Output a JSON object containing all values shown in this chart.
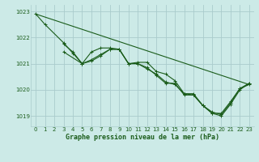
{
  "background_color": "#cceae7",
  "grid_color": "#aacccc",
  "line_color": "#1a5c1a",
  "title": "Graphe pression niveau de la mer (hPa)",
  "xlim": [
    -0.5,
    23.5
  ],
  "ylim": [
    1018.6,
    1023.25
  ],
  "yticks": [
    1019,
    1020,
    1021,
    1022,
    1023
  ],
  "xticks": [
    0,
    1,
    2,
    3,
    4,
    5,
    6,
    7,
    8,
    9,
    10,
    11,
    12,
    13,
    14,
    15,
    16,
    17,
    18,
    19,
    20,
    21,
    22,
    23
  ],
  "series": [
    {
      "x": [
        0,
        1,
        3,
        4,
        5,
        6,
        7,
        8,
        9,
        10,
        11,
        12,
        13,
        14,
        15,
        16,
        17,
        18,
        19,
        20,
        21,
        22,
        23
      ],
      "y": [
        1022.9,
        1022.5,
        1021.8,
        1021.4,
        1021.0,
        1021.1,
        1021.3,
        1021.55,
        1021.55,
        1021.0,
        1021.0,
        1020.8,
        1020.6,
        1020.3,
        1020.2,
        1019.85,
        1019.85,
        1019.4,
        1019.1,
        1019.1,
        1019.55,
        1020.05,
        1020.2
      ]
    },
    {
      "x": [
        3,
        4,
        5,
        6,
        7,
        8,
        9,
        10,
        11,
        12,
        13,
        14,
        15,
        16,
        17,
        18,
        19,
        20,
        21,
        22,
        23
      ],
      "y": [
        1021.75,
        1021.45,
        1021.0,
        1021.15,
        1021.35,
        1021.55,
        1021.55,
        1021.0,
        1021.0,
        1020.85,
        1020.55,
        1020.25,
        1020.25,
        1019.8,
        1019.8,
        1019.4,
        1019.1,
        1019.0,
        1019.45,
        1020.0,
        1020.25
      ]
    },
    {
      "x": [
        3,
        5,
        6,
        7,
        8,
        9,
        10,
        11,
        12,
        13,
        14,
        15,
        16,
        17,
        18,
        19,
        20,
        21,
        22,
        23
      ],
      "y": [
        1021.45,
        1021.0,
        1021.45,
        1021.6,
        1021.6,
        1021.55,
        1021.0,
        1021.05,
        1021.05,
        1020.7,
        1020.6,
        1020.35,
        1019.85,
        1019.8,
        1019.4,
        1019.15,
        1019.05,
        1019.5,
        1020.05,
        1020.25
      ]
    },
    {
      "x": [
        0,
        23
      ],
      "y": [
        1022.9,
        1020.2
      ]
    }
  ]
}
